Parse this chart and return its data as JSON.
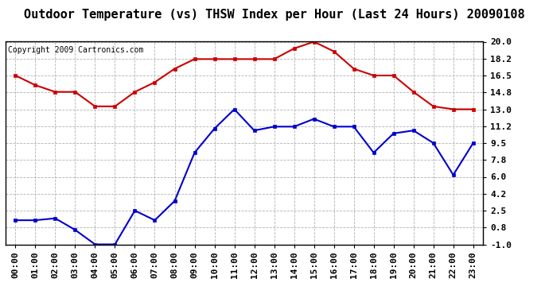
{
  "title": "Outdoor Temperature (vs) THSW Index per Hour (Last 24 Hours) 20090108",
  "copyright": "Copyright 2009 Cartronics.com",
  "hours": [
    "00:00",
    "01:00",
    "02:00",
    "03:00",
    "04:00",
    "05:00",
    "06:00",
    "07:00",
    "08:00",
    "09:00",
    "10:00",
    "11:00",
    "12:00",
    "13:00",
    "14:00",
    "15:00",
    "16:00",
    "17:00",
    "18:00",
    "19:00",
    "20:00",
    "21:00",
    "22:00",
    "23:00"
  ],
  "red_data": [
    16.5,
    15.5,
    14.8,
    14.8,
    13.3,
    13.3,
    14.8,
    15.8,
    17.2,
    18.2,
    18.2,
    18.2,
    18.2,
    18.2,
    19.3,
    20.0,
    19.0,
    17.2,
    16.5,
    16.5,
    14.8,
    13.3,
    13.0,
    13.0
  ],
  "blue_data": [
    1.5,
    1.5,
    1.7,
    0.5,
    -1.0,
    -1.0,
    2.5,
    1.5,
    3.5,
    8.5,
    11.0,
    13.0,
    10.8,
    11.2,
    11.2,
    12.0,
    11.2,
    11.2,
    8.5,
    10.5,
    10.8,
    9.5,
    6.2,
    9.5
  ],
  "red_color": "#cc0000",
  "blue_color": "#0000cc",
  "bg_color": "#ffffff",
  "grid_color": "#aaaaaa",
  "yticks": [
    -1.0,
    0.8,
    2.5,
    4.2,
    6.0,
    7.8,
    9.5,
    11.2,
    13.0,
    14.8,
    16.5,
    18.2,
    20.0
  ],
  "ymin": -1.0,
  "ymax": 20.0,
  "title_fontsize": 11,
  "copyright_fontsize": 7,
  "tick_fontsize": 8
}
